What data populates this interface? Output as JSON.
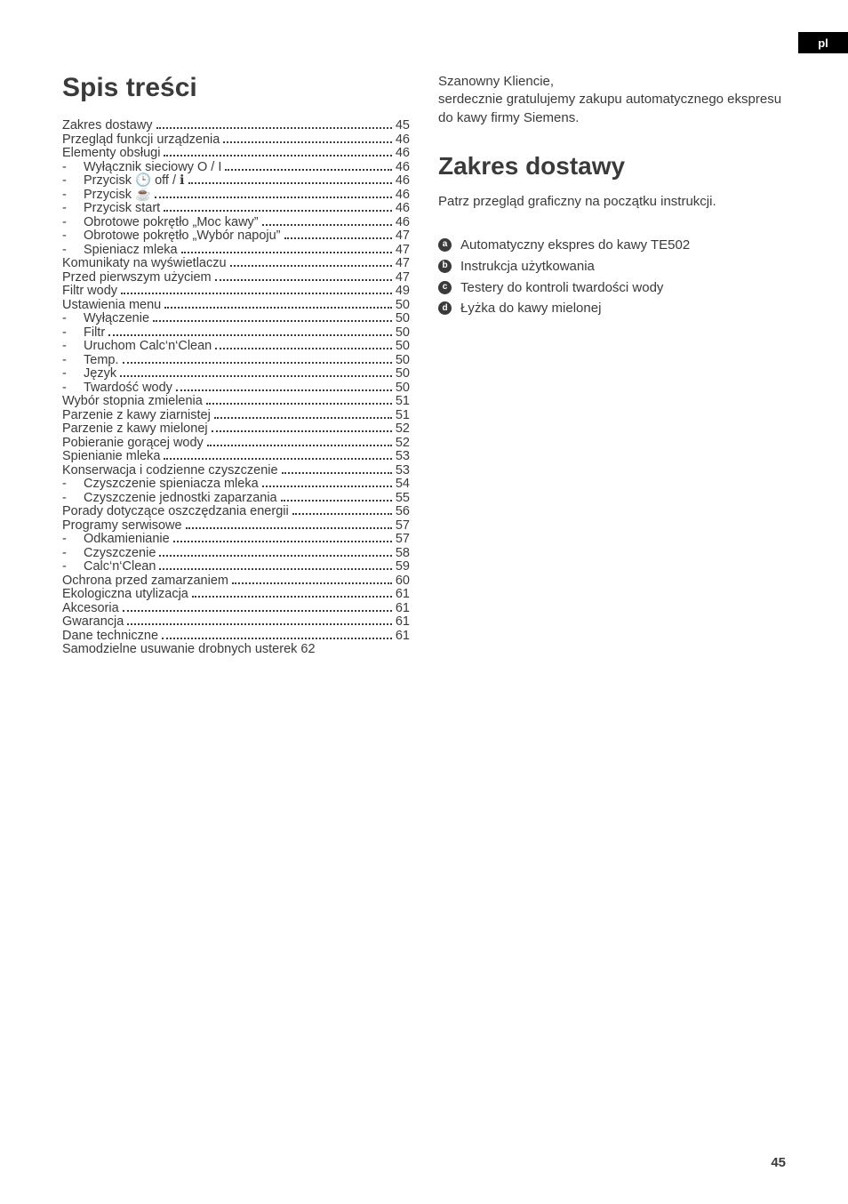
{
  "lang_tab": "pl",
  "page_number": "45",
  "left": {
    "toc_title": "Spis treści",
    "items": [
      {
        "label": "Zakres dostawy",
        "page": "45",
        "indent": false,
        "bullet": false
      },
      {
        "label": "Przegląd funkcji urządzenia",
        "page": "46",
        "indent": false,
        "bullet": false
      },
      {
        "label": "Elementy obsługi",
        "page": "46",
        "indent": false,
        "bullet": false
      },
      {
        "label": "Wyłącznik sieciowy O / I",
        "page": "46",
        "indent": true,
        "bullet": true
      },
      {
        "label": "Przycisk 🕒 off / ℹ",
        "page": "46",
        "indent": true,
        "bullet": true
      },
      {
        "label": "Przycisk ☕",
        "page": "46",
        "indent": true,
        "bullet": true
      },
      {
        "label": "Przycisk start",
        "page": "46",
        "indent": true,
        "bullet": true
      },
      {
        "label": "Obrotowe pokrętło „Moc kawy”",
        "page": "46",
        "indent": true,
        "bullet": true
      },
      {
        "label": "Obrotowe pokrętło „Wybór napoju”",
        "page": "47",
        "indent": true,
        "bullet": true
      },
      {
        "label": "Spieniacz mleka",
        "page": "47",
        "indent": true,
        "bullet": true
      },
      {
        "label": "Komunikaty na wyświetlaczu",
        "page": "47",
        "indent": false,
        "bullet": false
      },
      {
        "label": "Przed pierwszym użyciem",
        "page": "47",
        "indent": false,
        "bullet": false
      },
      {
        "label": "Filtr wody",
        "page": "49",
        "indent": false,
        "bullet": false
      },
      {
        "label": "Ustawienia menu",
        "page": "50",
        "indent": false,
        "bullet": false
      },
      {
        "label": "Wyłączenie",
        "page": "50",
        "indent": true,
        "bullet": true
      },
      {
        "label": "Filtr",
        "page": "50",
        "indent": true,
        "bullet": true
      },
      {
        "label": "Uruchom Calc‘n‘Clean",
        "page": "50",
        "indent": true,
        "bullet": true
      },
      {
        "label": "Temp.",
        "page": "50",
        "indent": true,
        "bullet": true
      },
      {
        "label": "Język",
        "page": "50",
        "indent": true,
        "bullet": true
      },
      {
        "label": "Twardość wody",
        "page": "50",
        "indent": true,
        "bullet": true
      },
      {
        "label": "Wybór stopnia zmielenia",
        "page": "51",
        "indent": false,
        "bullet": false
      },
      {
        "label": "Parzenie z kawy ziarnistej",
        "page": "51",
        "indent": false,
        "bullet": false
      },
      {
        "label": "Parzenie z kawy mielonej",
        "page": "52",
        "indent": false,
        "bullet": false
      },
      {
        "label": "Pobieranie gorącej wody",
        "page": "52",
        "indent": false,
        "bullet": false
      },
      {
        "label": "Spienianie mleka",
        "page": "53",
        "indent": false,
        "bullet": false
      },
      {
        "label": "Konserwacja i codzienne czyszczenie",
        "page": "53",
        "indent": false,
        "bullet": false
      },
      {
        "label": "Czyszczenie spieniacza mleka",
        "page": "54",
        "indent": true,
        "bullet": true
      },
      {
        "label": "Czyszczenie jednostki zaparzania",
        "page": "55",
        "indent": true,
        "bullet": true
      },
      {
        "label": "Porady dotyczące oszczędzania energii",
        "page": "56",
        "indent": false,
        "bullet": false
      },
      {
        "label": "Programy serwisowe",
        "page": "57",
        "indent": false,
        "bullet": false
      },
      {
        "label": "Odkamienianie",
        "page": "57",
        "indent": true,
        "bullet": true
      },
      {
        "label": "Czyszczenie",
        "page": "58",
        "indent": true,
        "bullet": true
      },
      {
        "label": "Calc‘n‘Clean",
        "page": "59",
        "indent": true,
        "bullet": true
      },
      {
        "label": "Ochrona przed zamarzaniem",
        "page": "60",
        "indent": false,
        "bullet": false
      },
      {
        "label": "Ekologiczna utylizacja",
        "page": "61",
        "indent": false,
        "bullet": false
      },
      {
        "label": "Akcesoria",
        "page": "61",
        "indent": false,
        "bullet": false
      },
      {
        "label": "Gwarancja",
        "page": "61",
        "indent": false,
        "bullet": false
      },
      {
        "label": "Dane techniczne",
        "page": "61",
        "indent": false,
        "bullet": false
      },
      {
        "label": "Samodzielne usuwanie drobnych usterek",
        "page": "62",
        "indent": false,
        "bullet": false,
        "nodots": true
      }
    ]
  },
  "right": {
    "intro": "Szanowny Kliencie,\nserdecznie gratulujemy zakupu automatycznego ekspresu do kawy firmy Siemens.",
    "section_title": "Zakres dostawy",
    "section_desc": "Patrz przegląd graficzny na początku instrukcji.",
    "items": [
      {
        "letter": "a",
        "text": "Automatyczny ekspres do kawy TE502"
      },
      {
        "letter": "b",
        "text": "Instrukcja użytkowania"
      },
      {
        "letter": "c",
        "text": "Testery do kontroli twardości wody"
      },
      {
        "letter": "d",
        "text": "Łyżka do kawy mielonej"
      }
    ]
  },
  "style": {
    "text_color": "#3a3a3a",
    "background": "#ffffff",
    "tab_bg": "#000000",
    "tab_fg": "#ffffff"
  }
}
